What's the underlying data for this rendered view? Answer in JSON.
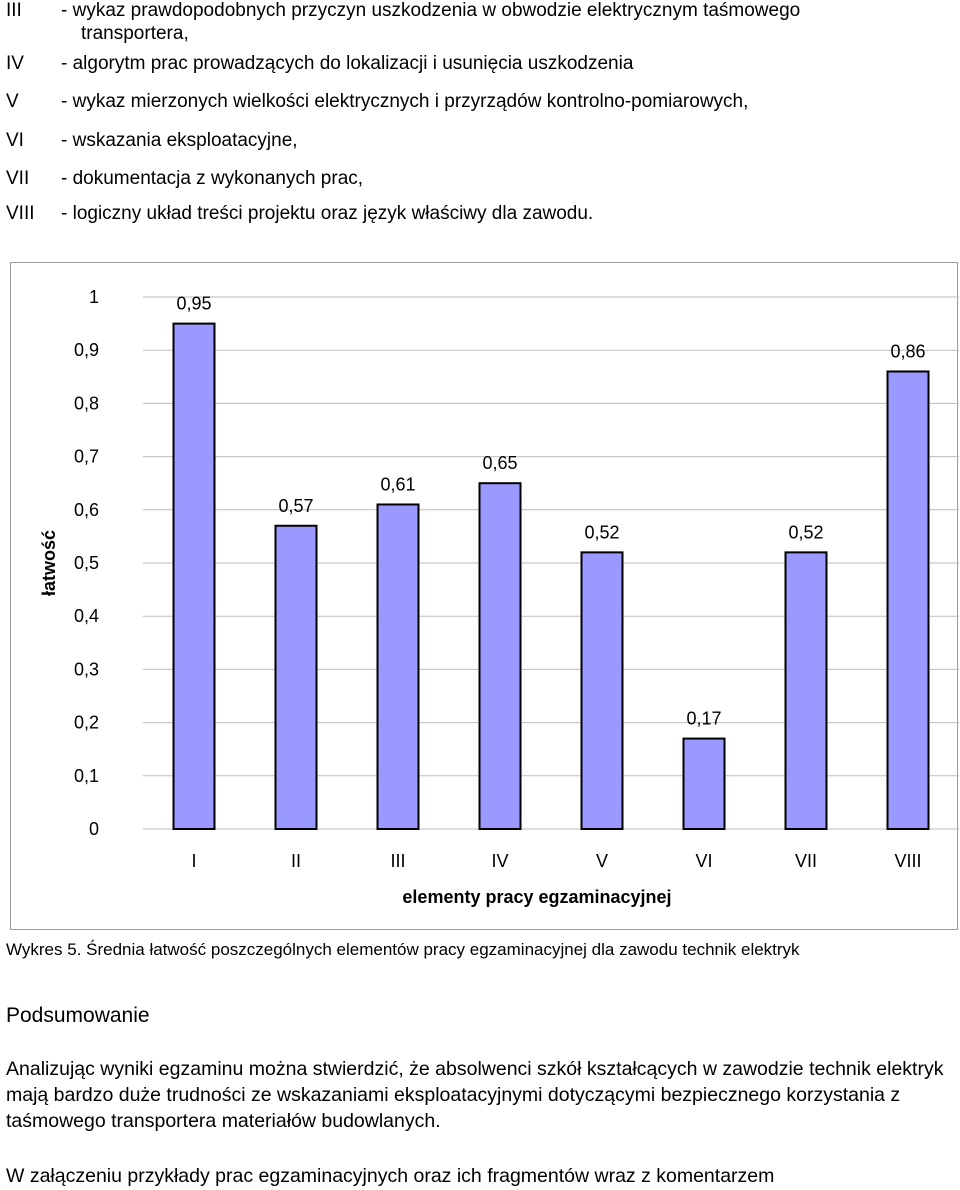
{
  "criteria": [
    {
      "num": "III",
      "text": "- wykaz prawdopodobnych przyczyn uszkodzenia w obwodzie elektrycznym taśmowego",
      "cont": "transportera,"
    },
    {
      "num": "IV",
      "text": "- algorytm prac prowadzących do lokalizacji i usunięcia uszkodzenia"
    },
    {
      "num": "V",
      "text": "- wykaz mierzonych wielkości elektrycznych i przyrządów kontrolno-pomiarowych,"
    },
    {
      "num": "VI",
      "text": "- wskazania eksploatacyjne,"
    },
    {
      "num": "VII",
      "text": "- dokumentacja z wykonanych prac,"
    },
    {
      "num": "VIII",
      "text": "- logiczny układ treści projektu oraz język właściwy dla zawodu."
    }
  ],
  "chart_data": {
    "type": "bar",
    "categories": [
      "I",
      "II",
      "III",
      "IV",
      "V",
      "VI",
      "VII",
      "VIII"
    ],
    "values": [
      0.95,
      0.57,
      0.61,
      0.65,
      0.52,
      0.17,
      0.52,
      0.86
    ],
    "value_labels": [
      "0,95",
      "0,57",
      "0,61",
      "0,65",
      "0,52",
      "0,17",
      "0,52",
      "0,86"
    ],
    "y_ticks": [
      0,
      0.1,
      0.2,
      0.3,
      0.4,
      0.5,
      0.6,
      0.7,
      0.8,
      0.9,
      1
    ],
    "y_tick_labels": [
      "0",
      "0,1",
      "0,2",
      "0,3",
      "0,4",
      "0,5",
      "0,6",
      "0,7",
      "0,8",
      "0,9",
      "1"
    ],
    "ylim": [
      0,
      1
    ],
    "xlabel": "elementy pracy egzaminacyjnej",
    "ylabel": "łatwość",
    "grid": true,
    "bar_color": "#9999ff",
    "grid_color": "#bdbdbd"
  },
  "caption": "Wykres 5. Średnia łatwość poszczególnych elementów pracy egzaminacyjnej dla zawodu technik elektryk",
  "summary": {
    "heading": "Podsumowanie",
    "text": "Analizując wyniki egzaminu można stwierdzić, że absolwenci szkół kształcących w zawodzie technik elektryk mają bardzo duże trudności ze wskazaniami eksploatacyjnymi dotyczącymi bezpiecznego korzystania z taśmowego transportera materiałów budowlanych."
  },
  "appendix": "W załączeniu przykłady prac egzaminacyjnych oraz ich fragmentów wraz z komentarzem"
}
